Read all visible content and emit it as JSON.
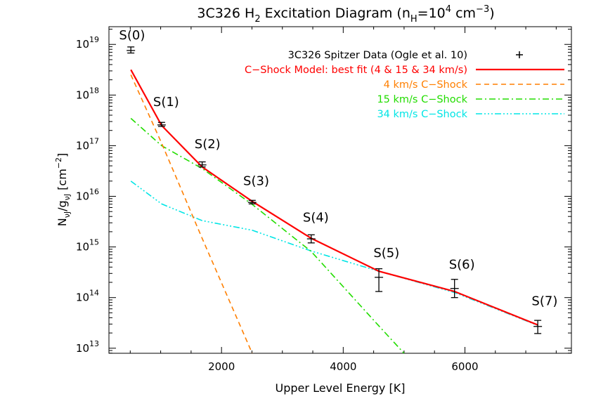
{
  "chart_data": {
    "type": "scatter",
    "title": "3C326 H₂ Excitation Diagram (nₕ=10⁴ cm⁻³)",
    "title_parts": {
      "main": "3C326 H",
      "main_sub": "2",
      "middle": " Excitation Diagram (n",
      "middle_sub": "H",
      "eq": "=10",
      "exp": "4",
      "unit": " cm",
      "unit_exp": "−3",
      "close": ")"
    },
    "xlabel": "Upper Level Energy [K]",
    "ylabel": {
      "main": "N",
      "sub1": "ν",
      "sub2": "J",
      "slash": "/g",
      "sub3": "ν",
      "sub4": "J",
      "unit": " [cm",
      "unit_exp": "−2",
      "close": "]"
    },
    "xlim": [
      150,
      7750
    ],
    "ylim_log10": [
      12.9,
      19.35
    ],
    "yscale": "log",
    "x_ticks": [
      {
        "value": 2000,
        "label": "2000"
      },
      {
        "value": 4000,
        "label": "4000"
      },
      {
        "value": 6000,
        "label": "6000"
      }
    ],
    "y_ticks": [
      {
        "value": 13,
        "base": "10",
        "exp": "13"
      },
      {
        "value": 14,
        "base": "10",
        "exp": "14"
      },
      {
        "value": 15,
        "base": "10",
        "exp": "15"
      },
      {
        "value": 16,
        "base": "10",
        "exp": "16"
      },
      {
        "value": 17,
        "base": "10",
        "exp": "17"
      },
      {
        "value": 18,
        "base": "10",
        "exp": "18"
      },
      {
        "value": 19,
        "base": "10",
        "exp": "19"
      }
    ],
    "points": [
      {
        "label": "S(0)",
        "x": 510,
        "y_log10": 18.88,
        "err_lo": 18.83,
        "err_hi": 18.95
      },
      {
        "label": "S(1)",
        "x": 1015,
        "y_log10": 17.41,
        "err_lo": 17.38,
        "err_hi": 17.46
      },
      {
        "label": "S(2)",
        "x": 1682,
        "y_log10": 16.62,
        "err_lo": 16.58,
        "err_hi": 16.68
      },
      {
        "label": "S(3)",
        "x": 2504,
        "y_log10": 15.88,
        "err_lo": 15.85,
        "err_hi": 15.92
      },
      {
        "label": "S(4)",
        "x": 3474,
        "y_log10": 15.16,
        "err_lo": 15.08,
        "err_hi": 15.24
      },
      {
        "label": "S(5)",
        "x": 4586,
        "y_log10": 14.4,
        "err_lo": 14.12,
        "err_hi": 14.57
      },
      {
        "label": "S(6)",
        "x": 5829,
        "y_log10": 14.18,
        "err_lo": 14.0,
        "err_hi": 14.36
      },
      {
        "label": "S(7)",
        "x": 7197,
        "y_log10": 13.43,
        "err_lo": 13.29,
        "err_hi": 13.55
      }
    ],
    "point_labels": [
      {
        "text": "S(0)",
        "x": 530,
        "y_log10": 19.1
      },
      {
        "text": "S(1)",
        "x": 1090,
        "y_log10": 17.78
      },
      {
        "text": "S(2)",
        "x": 1770,
        "y_log10": 16.95
      },
      {
        "text": "S(3)",
        "x": 2570,
        "y_log10": 16.22
      },
      {
        "text": "S(4)",
        "x": 3550,
        "y_log10": 15.5
      },
      {
        "text": "S(5)",
        "x": 4710,
        "y_log10": 14.8
      },
      {
        "text": "S(6)",
        "x": 5950,
        "y_log10": 14.57
      },
      {
        "text": "S(7)",
        "x": 7310,
        "y_log10": 13.85
      }
    ],
    "series": [
      {
        "name": "3C326 Spitzer Data (Ogle et al. 10)",
        "kind": "data",
        "color": "#000000"
      },
      {
        "name": "C−Shock Model: best fit (4 & 15 & 34 km/s)",
        "kind": "line",
        "color": "#ff0000",
        "dash": "",
        "x": [
          510,
          1015,
          1682,
          2504,
          3474,
          4586,
          5829,
          7197
        ],
        "y_log10": [
          18.5,
          17.4,
          16.58,
          15.9,
          15.17,
          14.52,
          14.12,
          13.46
        ]
      },
      {
        "name": "4 km/s C−Shock",
        "kind": "line",
        "color": "#ff7f00",
        "dash": "7,5",
        "x": [
          510,
          1015,
          1682,
          2504
        ],
        "y_log10": [
          18.4,
          17.05,
          15.17,
          12.9
        ]
      },
      {
        "name": "15 km/s C−Shock",
        "kind": "line",
        "color": "#22dd00",
        "dash": "9,4,2,4",
        "x": [
          510,
          1015,
          1682,
          2504,
          3474,
          4586,
          5000
        ],
        "y_log10": [
          17.54,
          17.0,
          16.55,
          15.84,
          14.91,
          13.44,
          12.9
        ]
      },
      {
        "name": "34 km/s C−Shock",
        "kind": "line",
        "color": "#00e5e5",
        "dash": "9,3,2,3,2,3,2,3",
        "x": [
          510,
          1015,
          1682,
          2504,
          3474,
          4586,
          5829,
          7197
        ],
        "y_log10": [
          16.3,
          15.85,
          15.52,
          15.33,
          14.92,
          14.52,
          14.1,
          13.45
        ]
      }
    ],
    "legend_position": "top-right",
    "grid": false
  }
}
